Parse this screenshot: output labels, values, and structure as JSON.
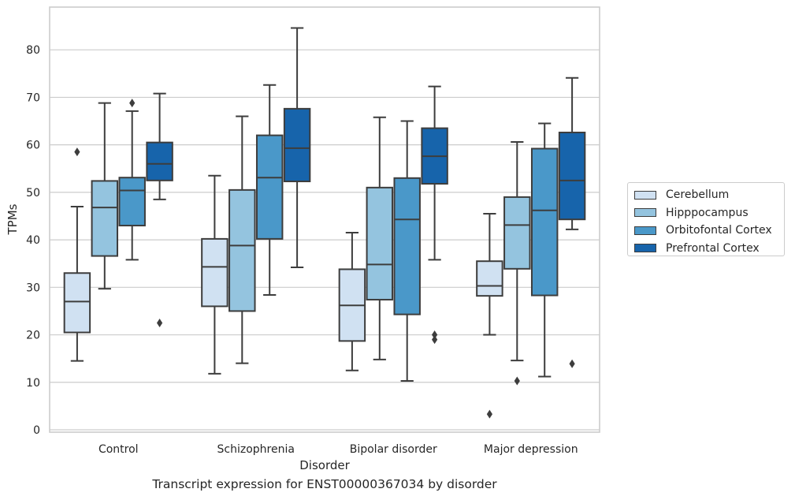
{
  "chart_data": {
    "type": "box",
    "title": "",
    "caption": "Transcript expression for ENST00000367034 by disorder",
    "xlabel": "Disorder",
    "ylabel": "TPMs",
    "ylim": [
      -0.5,
      89
    ],
    "yticks": [
      0,
      10,
      20,
      30,
      40,
      50,
      60,
      70,
      80
    ],
    "grid": "horizontal",
    "legend_position": "right",
    "categories": [
      "Control",
      "Schizophrenia",
      "Bipolar disorder",
      "Major depression"
    ],
    "series": [
      {
        "name": "Cerebellum",
        "color": "#d0e1f2",
        "boxes": [
          {
            "whisker_low": 14.5,
            "q1": 20.5,
            "median": 27,
            "q3": 33,
            "whisker_high": 47,
            "outliers": [
              58.5
            ]
          },
          {
            "whisker_low": 11.8,
            "q1": 26,
            "median": 34.3,
            "q3": 40.2,
            "whisker_high": 53.5,
            "outliers": []
          },
          {
            "whisker_low": 12.5,
            "q1": 18.7,
            "median": 26.2,
            "q3": 33.8,
            "whisker_high": 41.5,
            "outliers": []
          },
          {
            "whisker_low": 20,
            "q1": 28.2,
            "median": 30.3,
            "q3": 35.5,
            "whisker_high": 45.5,
            "outliers": [
              3.3
            ]
          }
        ]
      },
      {
        "name": "Hipppocampus",
        "color": "#94c4df",
        "boxes": [
          {
            "whisker_low": 29.7,
            "q1": 36.6,
            "median": 46.8,
            "q3": 52.4,
            "whisker_high": 68.8,
            "outliers": []
          },
          {
            "whisker_low": 14,
            "q1": 25,
            "median": 38.8,
            "q3": 50.5,
            "whisker_high": 66,
            "outliers": []
          },
          {
            "whisker_low": 14.8,
            "q1": 27.4,
            "median": 34.8,
            "q3": 51,
            "whisker_high": 65.8,
            "outliers": []
          },
          {
            "whisker_low": 14.6,
            "q1": 33.9,
            "median": 43.1,
            "q3": 49,
            "whisker_high": 60.6,
            "outliers": [
              10.3
            ]
          }
        ]
      },
      {
        "name": "Orbitofontal Cortex",
        "color": "#4a98c9",
        "boxes": [
          {
            "whisker_low": 35.8,
            "q1": 43,
            "median": 50.4,
            "q3": 53.1,
            "whisker_high": 67.1,
            "outliers": [
              68.8
            ]
          },
          {
            "whisker_low": 28.4,
            "q1": 40.2,
            "median": 53.1,
            "q3": 62,
            "whisker_high": 72.6,
            "outliers": []
          },
          {
            "whisker_low": 10.3,
            "q1": 24.3,
            "median": 44.3,
            "q3": 53,
            "whisker_high": 65,
            "outliers": []
          },
          {
            "whisker_low": 11.2,
            "q1": 28.3,
            "median": 46.2,
            "q3": 59.2,
            "whisker_high": 64.5,
            "outliers": []
          }
        ]
      },
      {
        "name": "Prefrontal Cortex",
        "color": "#1764ab",
        "boxes": [
          {
            "whisker_low": 48.5,
            "q1": 52.5,
            "median": 56,
            "q3": 60.5,
            "whisker_high": 70.8,
            "outliers": [
              22.5
            ]
          },
          {
            "whisker_low": 34.2,
            "q1": 52.3,
            "median": 59.3,
            "q3": 67.6,
            "whisker_high": 84.6,
            "outliers": []
          },
          {
            "whisker_low": 35.8,
            "q1": 51.8,
            "median": 57.6,
            "q3": 63.5,
            "whisker_high": 72.3,
            "outliers": [
              19,
              20
            ]
          },
          {
            "whisker_low": 42.2,
            "q1": 44.3,
            "median": 52.5,
            "q3": 62.6,
            "whisker_high": 74.1,
            "outliers": [
              13.9
            ]
          }
        ]
      }
    ]
  }
}
